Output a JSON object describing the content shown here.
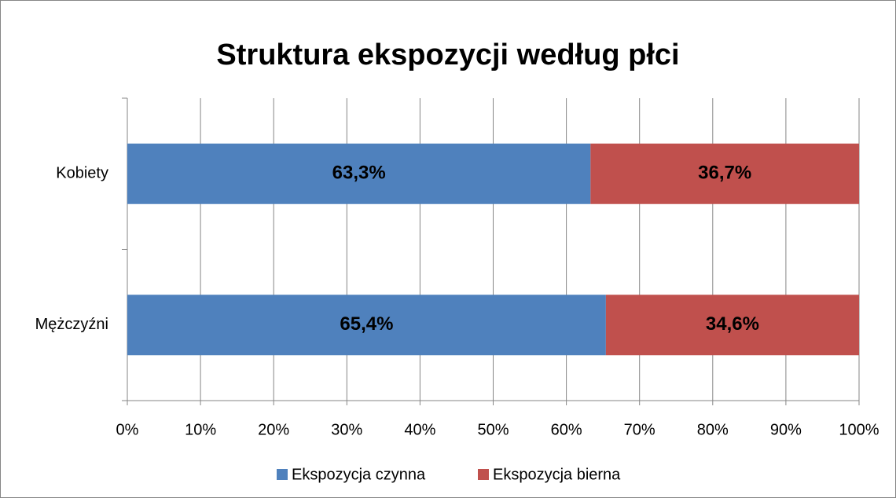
{
  "chart_data": {
    "type": "stacked_barh",
    "title": "Struktura ekspozycji według płci",
    "categories": [
      "Kobiety",
      "Mężczyźni"
    ],
    "series": [
      {
        "name": "Ekspozycja czynna",
        "color": "#4f81bd",
        "values": [
          63.3,
          65.4
        ],
        "value_labels": [
          "63,3%",
          "65,4%"
        ]
      },
      {
        "name": "Ekspozycja bierna",
        "color": "#c0504d",
        "values": [
          36.7,
          34.6
        ],
        "value_labels": [
          "36,7%",
          "34,6%"
        ]
      }
    ],
    "xlim": [
      0,
      100
    ],
    "xticks": [
      {
        "value": 0,
        "label": "0%"
      },
      {
        "value": 10,
        "label": "10%"
      },
      {
        "value": 20,
        "label": "20%"
      },
      {
        "value": 30,
        "label": "30%"
      },
      {
        "value": 40,
        "label": "40%"
      },
      {
        "value": 50,
        "label": "50%"
      },
      {
        "value": 60,
        "label": "60%"
      },
      {
        "value": 70,
        "label": "70%"
      },
      {
        "value": 80,
        "label": "80%"
      },
      {
        "value": 90,
        "label": "90%"
      },
      {
        "value": 100,
        "label": "100%"
      }
    ],
    "grid": true,
    "legend": "bottom"
  }
}
